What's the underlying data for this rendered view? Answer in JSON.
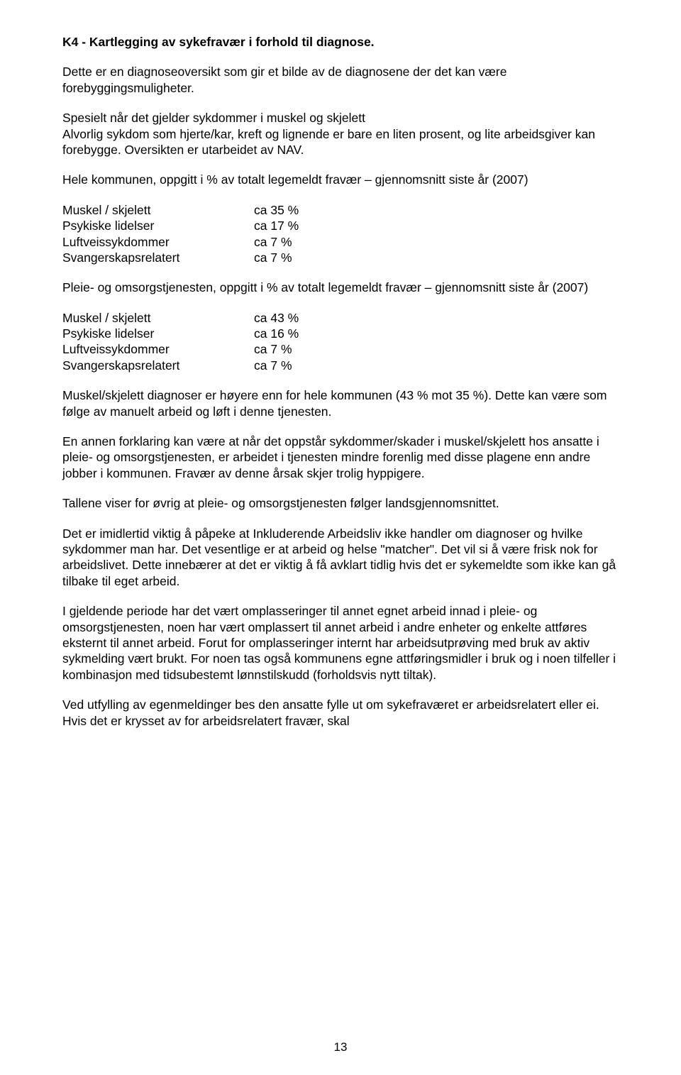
{
  "heading": "K4 - Kartlegging av sykefravær i forhold til diagnose.",
  "p1": "Dette er en diagnoseoversikt som gir et bilde av de diagnosene der det kan være forebyggingsmuligheter.",
  "p2": "Spesielt når det gjelder sykdommer i muskel og skjelett",
  "p3": "Alvorlig sykdom som hjerte/kar, kreft og lignende er bare en liten prosent, og lite arbeidsgiver kan forebygge. Oversikten er utarbeidet av NAV.",
  "p4": "Hele kommunen, oppgitt i % av totalt legemeldt fravær – gjennomsnitt siste år (2007)",
  "table1": {
    "rows": [
      {
        "label": "Muskel / skjelett",
        "value": "ca 35 %"
      },
      {
        "label": "Psykiske lidelser",
        "value": "ca 17 %"
      },
      {
        "label": "Luftveissykdommer",
        "value": "ca 7 %"
      },
      {
        "label": "Svangerskapsrelatert",
        "value": "ca 7 %"
      }
    ]
  },
  "p5": "Pleie- og omsorgstjenesten, oppgitt i % av totalt legemeldt fravær – gjennomsnitt siste år (2007)",
  "table2": {
    "rows": [
      {
        "label": "Muskel / skjelett",
        "value": "ca 43 %"
      },
      {
        "label": "Psykiske lidelser",
        "value": "ca 16 %"
      },
      {
        "label": "Luftveissykdommer",
        "value": "ca 7 %"
      },
      {
        "label": "Svangerskapsrelatert",
        "value": "ca 7 %"
      }
    ]
  },
  "p6": "Muskel/skjelett diagnoser er høyere enn for hele kommunen (43 % mot 35 %). Dette kan være som følge av manuelt arbeid og løft i denne tjenesten.",
  "p7": "En annen forklaring kan være at når det oppstår sykdommer/skader i muskel/skjelett hos ansatte i pleie- og omsorgstjenesten, er arbeidet i tjenesten mindre forenlig med disse plagene enn andre jobber i kommunen. Fravær av denne årsak skjer trolig hyppigere.",
  "p8": "Tallene viser for øvrig at pleie- og omsorgstjenesten følger landsgjennomsnittet.",
  "p9": "Det er imidlertid viktig å påpeke at Inkluderende Arbeidsliv ikke handler om diagnoser og hvilke sykdommer man har. Det vesentlige er at arbeid og helse \"matcher\". Det vil si å være frisk nok for arbeidslivet. Dette innebærer at det er viktig å få avklart tidlig hvis det er sykemeldte som ikke kan gå tilbake til eget arbeid.",
  "p10": "I gjeldende periode har det vært omplasseringer til annet egnet arbeid innad i pleie- og omsorgstjenesten, noen har vært omplassert til annet arbeid i andre enheter og enkelte attføres eksternt til annet arbeid. Forut for omplasseringer internt har arbeidsutprøving med bruk av aktiv sykmelding vært brukt. For noen tas også kommunens egne attføringsmidler i bruk og i noen tilfeller i kombinasjon med tidsubestemt lønnstilskudd (forholdsvis nytt tiltak).",
  "p11": "Ved utfylling av egenmeldinger bes den ansatte fylle ut om sykefraværet er arbeidsrelatert eller ei. Hvis det er krysset av for arbeidsrelatert fravær, skal",
  "pagenum": "13"
}
